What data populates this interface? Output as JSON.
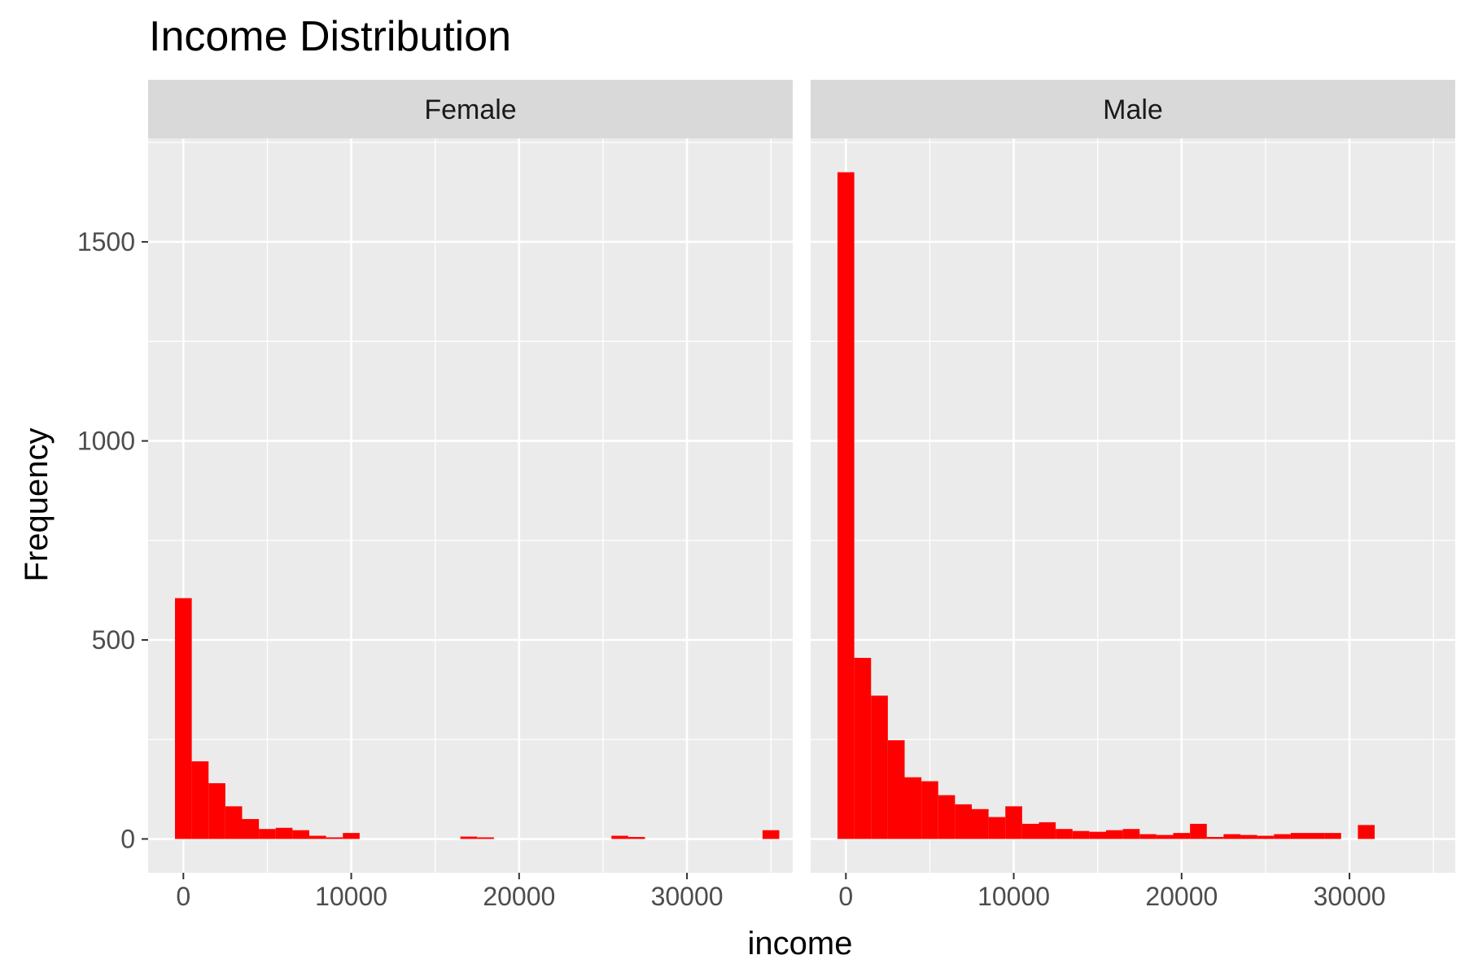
{
  "chart_data": {
    "type": "histogram",
    "title": "Income Distribution",
    "xlabel": "income",
    "ylabel": "Frequency",
    "bar_color": "#ff0000",
    "panel_background": "#ebebeb",
    "strip_background": "#d9d9d9",
    "grid": true,
    "bin_width": 1000,
    "xlim": [
      -2100,
      36300
    ],
    "ylim": [
      -85,
      1760
    ],
    "x_ticks": [
      0,
      10000,
      20000,
      30000
    ],
    "y_ticks": [
      0,
      500,
      1000,
      1500
    ],
    "panels": [
      {
        "label": "Female",
        "bins": [
          {
            "x": 0,
            "count": 605
          },
          {
            "x": 1000,
            "count": 195
          },
          {
            "x": 2000,
            "count": 140
          },
          {
            "x": 3000,
            "count": 82
          },
          {
            "x": 4000,
            "count": 50
          },
          {
            "x": 5000,
            "count": 25
          },
          {
            "x": 6000,
            "count": 28
          },
          {
            "x": 7000,
            "count": 22
          },
          {
            "x": 8000,
            "count": 8
          },
          {
            "x": 9000,
            "count": 4
          },
          {
            "x": 10000,
            "count": 15
          },
          {
            "x": 17000,
            "count": 6
          },
          {
            "x": 18000,
            "count": 4
          },
          {
            "x": 26000,
            "count": 8
          },
          {
            "x": 27000,
            "count": 5
          },
          {
            "x": 35000,
            "count": 22
          }
        ]
      },
      {
        "label": "Male",
        "bins": [
          {
            "x": 0,
            "count": 1675
          },
          {
            "x": 1000,
            "count": 455
          },
          {
            "x": 2000,
            "count": 360
          },
          {
            "x": 3000,
            "count": 248
          },
          {
            "x": 4000,
            "count": 155
          },
          {
            "x": 5000,
            "count": 145
          },
          {
            "x": 6000,
            "count": 110
          },
          {
            "x": 7000,
            "count": 87
          },
          {
            "x": 8000,
            "count": 75
          },
          {
            "x": 9000,
            "count": 55
          },
          {
            "x": 10000,
            "count": 82
          },
          {
            "x": 11000,
            "count": 38
          },
          {
            "x": 12000,
            "count": 42
          },
          {
            "x": 13000,
            "count": 25
          },
          {
            "x": 14000,
            "count": 20
          },
          {
            "x": 15000,
            "count": 18
          },
          {
            "x": 16000,
            "count": 22
          },
          {
            "x": 17000,
            "count": 25
          },
          {
            "x": 18000,
            "count": 12
          },
          {
            "x": 19000,
            "count": 10
          },
          {
            "x": 20000,
            "count": 15
          },
          {
            "x": 21000,
            "count": 38
          },
          {
            "x": 22000,
            "count": 5
          },
          {
            "x": 23000,
            "count": 12
          },
          {
            "x": 24000,
            "count": 10
          },
          {
            "x": 25000,
            "count": 8
          },
          {
            "x": 26000,
            "count": 12
          },
          {
            "x": 27000,
            "count": 15
          },
          {
            "x": 28000,
            "count": 15
          },
          {
            "x": 29000,
            "count": 15
          },
          {
            "x": 31000,
            "count": 35
          }
        ]
      }
    ]
  }
}
